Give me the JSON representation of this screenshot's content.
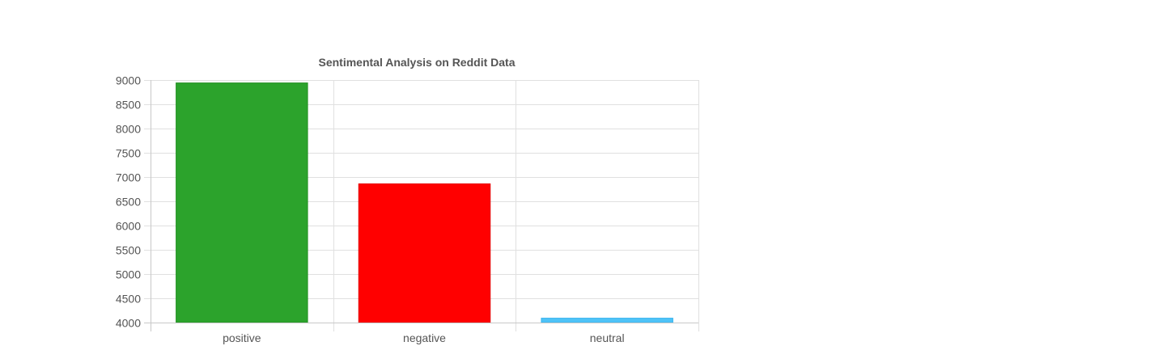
{
  "chart_data": {
    "type": "bar",
    "title": "Sentimental Analysis on Reddit Data",
    "xlabel": "",
    "ylabel": "",
    "categories": [
      "positive",
      "negative",
      "neutral"
    ],
    "values": [
      8940,
      6860,
      4090
    ],
    "ylim": [
      4000,
      9000
    ],
    "yticks": [
      4000,
      4500,
      5000,
      5500,
      6000,
      6500,
      7000,
      7500,
      8000,
      8500,
      9000
    ],
    "grid": true,
    "legend": "none",
    "colors": {
      "bars": [
        "#2ca32c",
        "#ff0000",
        "#4fc3f7"
      ],
      "bar_borders": [
        "#239023",
        "#e60000",
        "#36b3ef"
      ],
      "grid": "#e0e0e0",
      "axis": "#c8c8c8",
      "text": "#555555"
    }
  }
}
